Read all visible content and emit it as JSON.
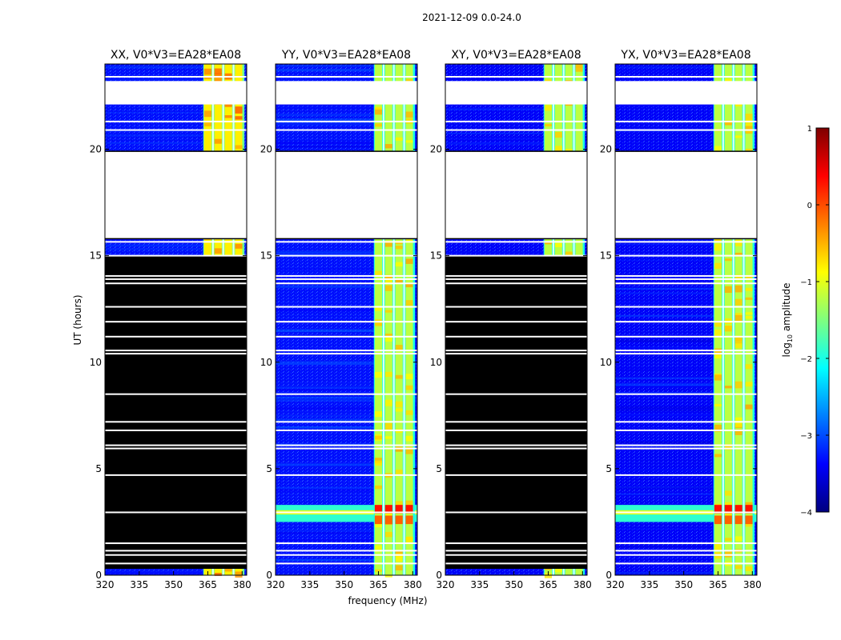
{
  "chart_data": {
    "type": "heatmap",
    "suptitle": "2021-12-09 0.0-24.0",
    "ylabel": "UT (hours)",
    "xlabel": "frequency (MHz)",
    "xlim": [
      320,
      382
    ],
    "ylim": [
      0,
      24
    ],
    "xticks": [
      "320",
      "335",
      "350",
      "365",
      "380"
    ],
    "yticks": [
      "0",
      "5",
      "10",
      "15",
      "20"
    ],
    "colorbar": {
      "label_prefix": "log",
      "label_sub": "10",
      "label_suffix": " amplitude",
      "range": [
        -4,
        1
      ],
      "ticks": [
        "1",
        "0",
        "−1",
        "−2",
        "−3",
        "−4"
      ],
      "colormap": "jet",
      "colors": [
        "#00007f",
        "#0000ff",
        "#007fff",
        "#00ffff",
        "#7fff7f",
        "#ffff00",
        "#ff7f00",
        "#ff0000",
        "#7f0000"
      ]
    },
    "rfi_band_mhz": [
      363,
      379
    ],
    "rfi_channels_mhz": [
      365,
      369.5,
      374,
      378.5
    ],
    "flagged_color": "#000000",
    "no_data_color": "#ffffff",
    "time_gaps_hours": [
      [
        15.8,
        19.9
      ],
      [
        22.1,
        23.2
      ]
    ],
    "panels": [
      {
        "title": "XX, V0*V3=EA28*EA08",
        "polarization": "XX",
        "level_dbl": -3.3,
        "rfi_level": -0.8,
        "flagged_hours": [
          0.3,
          15.0
        ]
      },
      {
        "title": "YY, V0*V3=EA28*EA08",
        "polarization": "YY",
        "level_dbl": -3.3,
        "rfi_level": -1.2,
        "flagged_hours": null
      },
      {
        "title": "XY, V0*V3=EA28*EA08",
        "polarization": "XY",
        "level_dbl": -3.4,
        "rfi_level": -1.2,
        "flagged_hours": [
          0.3,
          15.0
        ]
      },
      {
        "title": "YX, V0*V3=EA28*EA08",
        "polarization": "YX",
        "level_dbl": -3.4,
        "rfi_level": -1.2,
        "flagged_hours": null
      }
    ]
  }
}
